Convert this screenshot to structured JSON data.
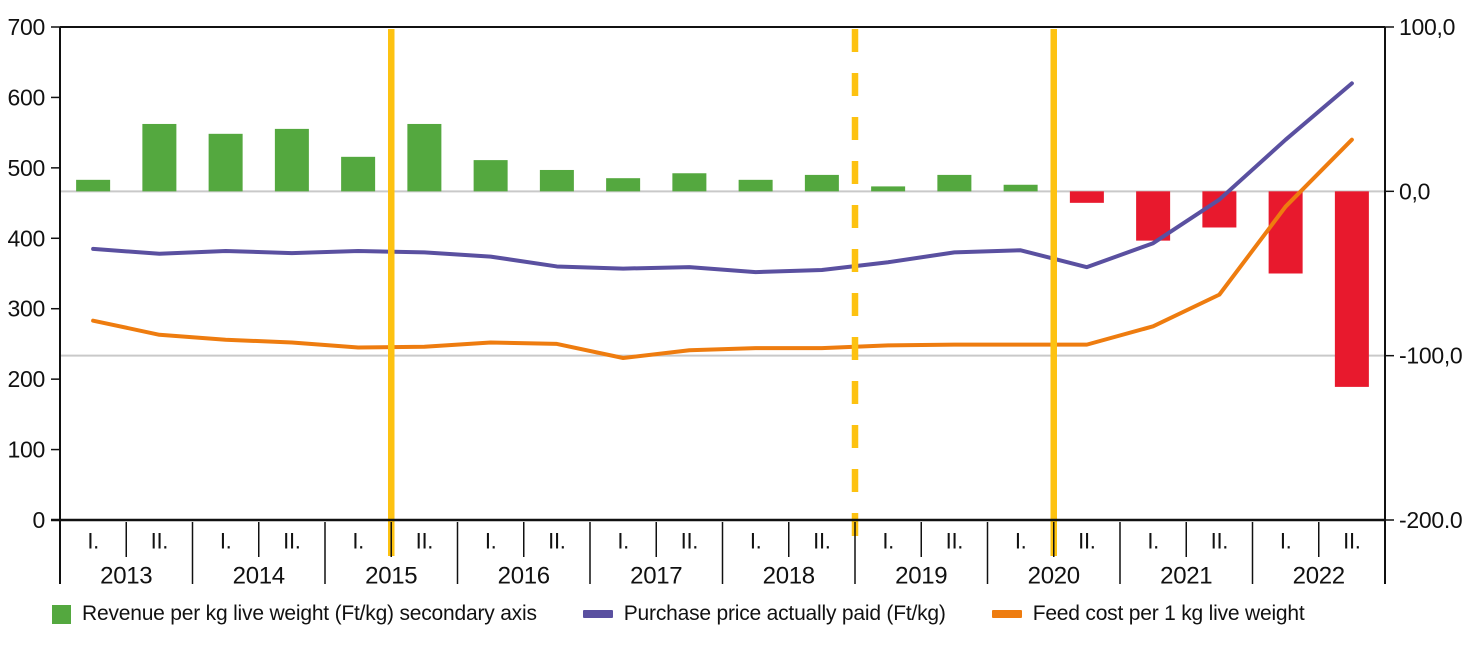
{
  "chart_data": {
    "type": "combo",
    "title": "",
    "x": {
      "years": [
        "2013",
        "2014",
        "2015",
        "2016",
        "2017",
        "2018",
        "2019",
        "2020",
        "2021",
        "2022"
      ],
      "half_year_labels": [
        "I.",
        "II."
      ],
      "categories": [
        "2013 I.",
        "2013 II.",
        "2014 I.",
        "2014 II.",
        "2015 I.",
        "2015 II.",
        "2016 I.",
        "2016 II.",
        "2017 I.",
        "2017 II.",
        "2018 I.",
        "2018 II.",
        "2019 I.",
        "2019 II.",
        "2020 I.",
        "2020 II.",
        "2021 I.",
        "2021 II.",
        "2022 I.",
        "2022 II."
      ]
    },
    "left_axis": {
      "min": 0,
      "max": 700,
      "tick_step": 100,
      "tick_labels": [
        "0",
        "100",
        "200",
        "300",
        "400",
        "500",
        "600",
        "700"
      ]
    },
    "right_axis": {
      "min": -200,
      "max": 100,
      "tick_values": [
        100,
        0,
        -100,
        -200
      ],
      "tick_labels": [
        "100,0",
        "0,0",
        "-100,0",
        "-200.0"
      ]
    },
    "gridlines": {
      "axis": "right",
      "values": [
        0,
        -100
      ],
      "color": "#c9c9c9"
    },
    "series": [
      {
        "id": "revenue-bars",
        "name": "Revenue per kg live weight (Ft/kg) secondary axis",
        "type": "bar",
        "axis": "right",
        "color_positive": "#54a83f",
        "color_negative": "#e8192d",
        "values": [
          7,
          41,
          35,
          38,
          21,
          41,
          19,
          13,
          8,
          11,
          7,
          10,
          3,
          10,
          4,
          -7,
          -30,
          -22,
          -50,
          -119
        ]
      },
      {
        "id": "purchase-price-line",
        "name": "Purchase price actually paid (Ft/kg)",
        "type": "line",
        "axis": "left",
        "color": "#5a50a0",
        "values": [
          385,
          378,
          382,
          379,
          382,
          380,
          374,
          360,
          357,
          359,
          352,
          355,
          366,
          380,
          383,
          359,
          393,
          455,
          540,
          620
        ]
      },
      {
        "id": "feed-cost-line",
        "name": "Feed cost per 1 kg live weight",
        "type": "line",
        "axis": "left",
        "color": "#ee7c0f",
        "values": [
          283,
          263,
          256,
          252,
          245,
          246,
          252,
          250,
          230,
          241,
          244,
          244,
          248,
          249,
          249,
          249,
          275,
          320,
          445,
          540
        ]
      }
    ],
    "markers": [
      {
        "style": "solid",
        "boundary_index": 5,
        "color": "#fdc211"
      },
      {
        "style": "dashed",
        "boundary_index": 12,
        "color": "#fdc211"
      },
      {
        "style": "solid",
        "boundary_index": 15,
        "color": "#fdc211"
      }
    ]
  },
  "legend": {
    "items": [
      {
        "swatch": "square",
        "color": "#54a83f",
        "label": "Revenue per kg live weight (Ft/kg) secondary axis"
      },
      {
        "swatch": "dash",
        "color": "#5a50a0",
        "label": "Purchase price actually paid (Ft/kg)"
      },
      {
        "swatch": "dash",
        "color": "#ee7c0f",
        "label": "Feed cost per 1 kg live weight"
      }
    ]
  }
}
